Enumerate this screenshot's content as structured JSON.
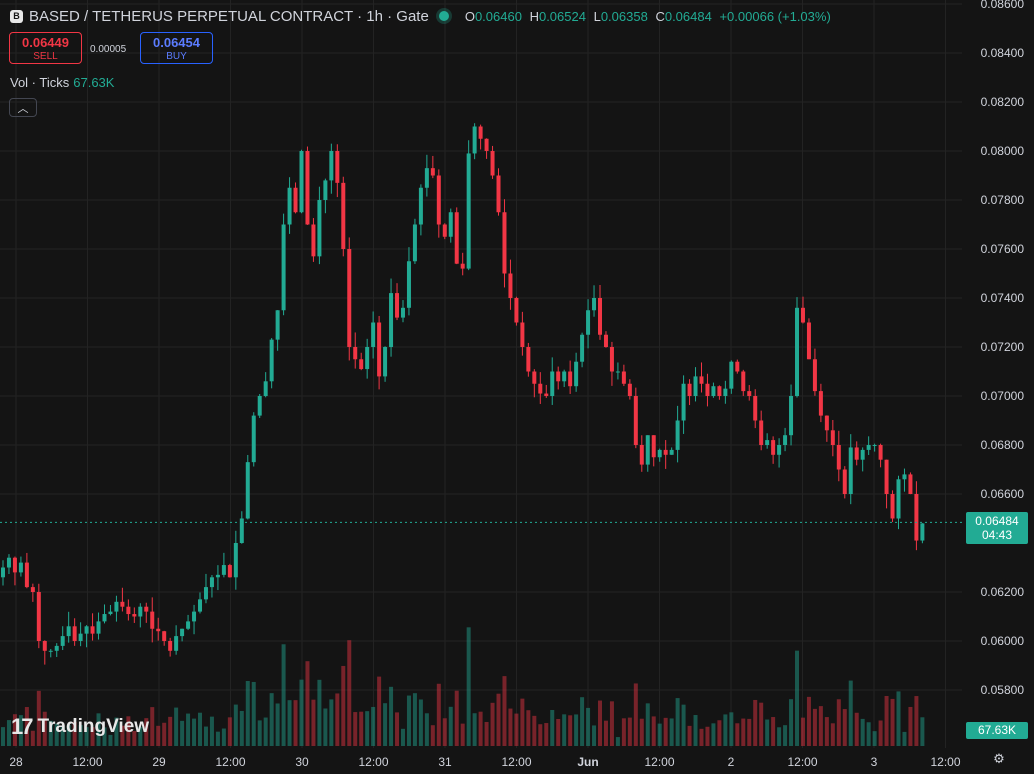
{
  "header": {
    "title": "BASED / TETHERUS PERPETUAL CONTRACT · 1h · Gate",
    "ohlc": {
      "o_label": "O",
      "o": "0.06460",
      "h_label": "H",
      "h": "0.06524",
      "l_label": "L",
      "l": "0.06358",
      "c_label": "C",
      "c": "0.06484",
      "change": "+0.00066 (+1.03%)"
    }
  },
  "trade": {
    "sell_price": "0.06449",
    "sell_label": "SELL",
    "spread": "0.00005",
    "buy_price": "0.06454",
    "buy_label": "BUY"
  },
  "volume_indicator": {
    "label": "Vol · Ticks",
    "value": "67.63K"
  },
  "branding": {
    "logo_text": "TradingView"
  },
  "price_tag": {
    "price": "0.06484",
    "countdown": "04:43"
  },
  "volume_tag": "67.63K",
  "colors": {
    "up": "#22ab94",
    "down": "#f23645",
    "background": "#141414",
    "grid": "#232323"
  },
  "chart_data": {
    "type": "candlestick",
    "interval": "1h",
    "y_axis_labels": [
      "0.08600",
      "0.08400",
      "0.08200",
      "0.08000",
      "0.07800",
      "0.07600",
      "0.07400",
      "0.07200",
      "0.07000",
      "0.06800",
      "0.06600",
      "0.06200",
      "0.06000",
      "0.05800"
    ],
    "ylim": [
      0.0555,
      0.086
    ],
    "x_axis_labels": [
      "28",
      "12:00",
      "29",
      "12:00",
      "30",
      "12:00",
      "31",
      "12:00",
      "Jun",
      "12:00",
      "2",
      "12:00",
      "3",
      "12:00"
    ],
    "x_axis_bold": [
      "Jun"
    ],
    "last_price": 0.06484,
    "candles_close": [
      0.063,
      0.0634,
      0.0628,
      0.0632,
      0.0622,
      0.062,
      0.06,
      0.0596,
      0.0596,
      0.0598,
      0.0602,
      0.0606,
      0.06,
      0.0603,
      0.0606,
      0.0603,
      0.0608,
      0.0611,
      0.0612,
      0.0616,
      0.0614,
      0.0611,
      0.061,
      0.0614,
      0.0612,
      0.0605,
      0.0604,
      0.06,
      0.0596,
      0.0602,
      0.0605,
      0.0608,
      0.0612,
      0.0617,
      0.0622,
      0.0626,
      0.0627,
      0.0631,
      0.0626,
      0.064,
      0.065,
      0.0673,
      0.0692,
      0.07,
      0.0706,
      0.0723,
      0.0735,
      0.077,
      0.0785,
      0.0775,
      0.08,
      0.077,
      0.0757,
      0.078,
      0.0788,
      0.08,
      0.0787,
      0.076,
      0.072,
      0.0715,
      0.0711,
      0.072,
      0.073,
      0.0708,
      0.072,
      0.0742,
      0.0732,
      0.0736,
      0.0755,
      0.077,
      0.0785,
      0.0793,
      0.079,
      0.077,
      0.0765,
      0.0775,
      0.0754,
      0.0752,
      0.0799,
      0.081,
      0.0805,
      0.08,
      0.079,
      0.0775,
      0.075,
      0.074,
      0.073,
      0.072,
      0.071,
      0.0705,
      0.0701,
      0.07,
      0.071,
      0.0706,
      0.071,
      0.0704,
      0.0714,
      0.0725,
      0.0735,
      0.074,
      0.0725,
      0.072,
      0.071,
      0.071,
      0.0705,
      0.07,
      0.068,
      0.0672,
      0.0684,
      0.0675,
      0.0678,
      0.0676,
      0.0678,
      0.069,
      0.0705,
      0.07,
      0.0708,
      0.0705,
      0.07,
      0.0704,
      0.07,
      0.0703,
      0.0714,
      0.071,
      0.0702,
      0.07,
      0.069,
      0.068,
      0.0682,
      0.0676,
      0.068,
      0.0684,
      0.07,
      0.0736,
      0.073,
      0.0715,
      0.0702,
      0.0692,
      0.0686,
      0.068,
      0.067,
      0.066,
      0.0679,
      0.0674,
      0.0678,
      0.068,
      0.068,
      0.0674,
      0.066,
      0.065,
      0.0666,
      0.0668,
      0.066,
      0.0641,
      0.0648
    ],
    "volume_axis_tag": "67.63K"
  }
}
